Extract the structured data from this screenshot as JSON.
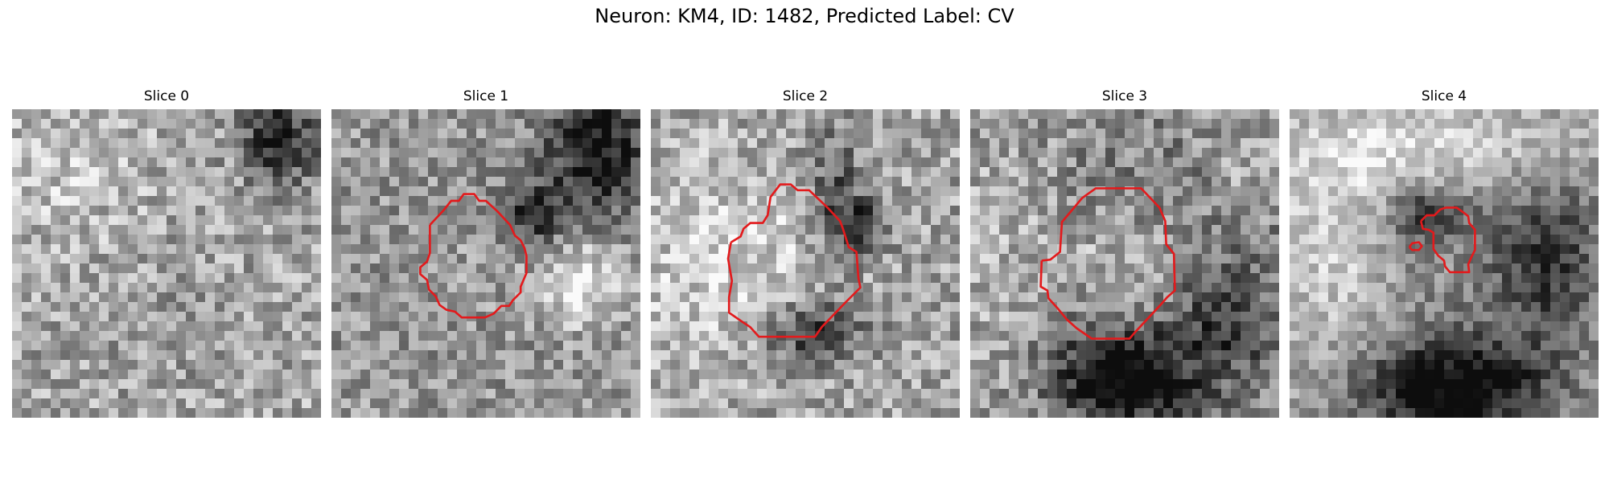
{
  "figure": {
    "title": "Neuron: KM4, ID: 1482, Predicted Label: CV",
    "contour_color": "#e31a1c"
  },
  "panels": [
    {
      "title": "Slice 0"
    },
    {
      "title": "Slice 1"
    },
    {
      "title": "Slice 2"
    },
    {
      "title": "Slice 3"
    },
    {
      "title": "Slice 4"
    }
  ]
}
